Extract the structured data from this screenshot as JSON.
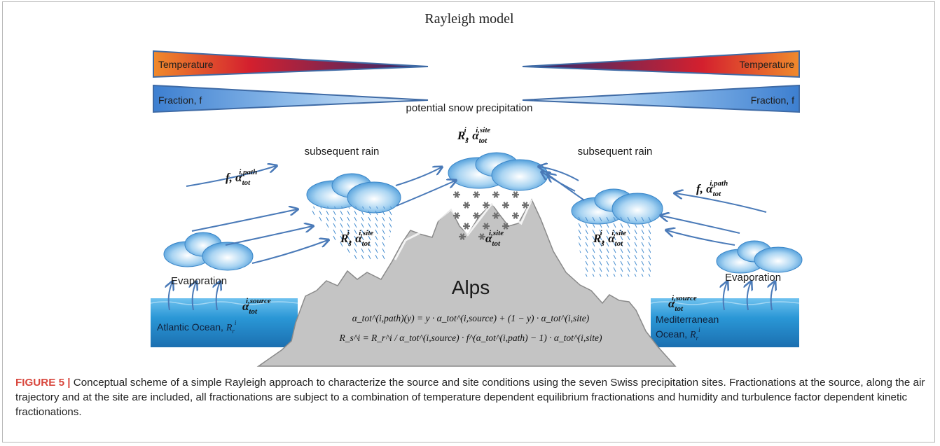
{
  "title": "Rayleigh model",
  "bars": {
    "temperature_left": "Temperature",
    "temperature_right": "Temperature",
    "fraction_left": "Fraction, f",
    "fraction_right": "Fraction, f"
  },
  "labels": {
    "potential_snow": "potential snow precipitation",
    "subsequent_rain_left": "subsequent rain",
    "subsequent_rain_right": "subsequent rain",
    "evaporation_left": "Evaporation",
    "evaporation_right": "Evaporation",
    "alps": "Alps",
    "atlantic_ocean": "Atlantic Ocean, ",
    "mediterranean_line1": "Mediterranean",
    "mediterranean_line2": "Ocean, ",
    "alpha": "α",
    "sub_tot": "tot",
    "sup_path": "i,path",
    "sup_site": "i,site",
    "sup_source": "i,source",
    "f_prefix": "f, ",
    "R": "R",
    "sub_s": "s",
    "sub_r": "r",
    "sup_i": "i",
    "comma": ", "
  },
  "equations": {
    "eq1": "α_tot^(i,path)(y) = y · α_tot^(i,source) + (1 − y) · α_tot^(i,site)",
    "eq2": "R_s^i = R_r^i / α_tot^(i,source) · f^(α_tot^(i,path) − 1) · α_tot^(i,site)"
  },
  "caption": {
    "label": "FIGURE 5 |",
    "text": " Conceptual scheme of a simple Rayleigh approach to characterize the source and site conditions using the seven Swiss precipitation sites. Fractionations at the source, along the air trajectory and at the site are included, all fractionations are subject to a combination of temperature dependent equilibrium fractionations and humidity and turbulence factor dependent kinetic fractionations."
  },
  "colors": {
    "temperature_warm": "#f08a2c",
    "temperature_mid": "#d4202e",
    "temperature_cold": "#2a2a70",
    "fraction_light": "#d8e8f6",
    "fraction_dark": "#2e6cc0",
    "arrow": "#4a7ab8",
    "mountain": "#c3c3c3",
    "ocean": "#2f9bd6",
    "caption_label": "#d8463c"
  }
}
